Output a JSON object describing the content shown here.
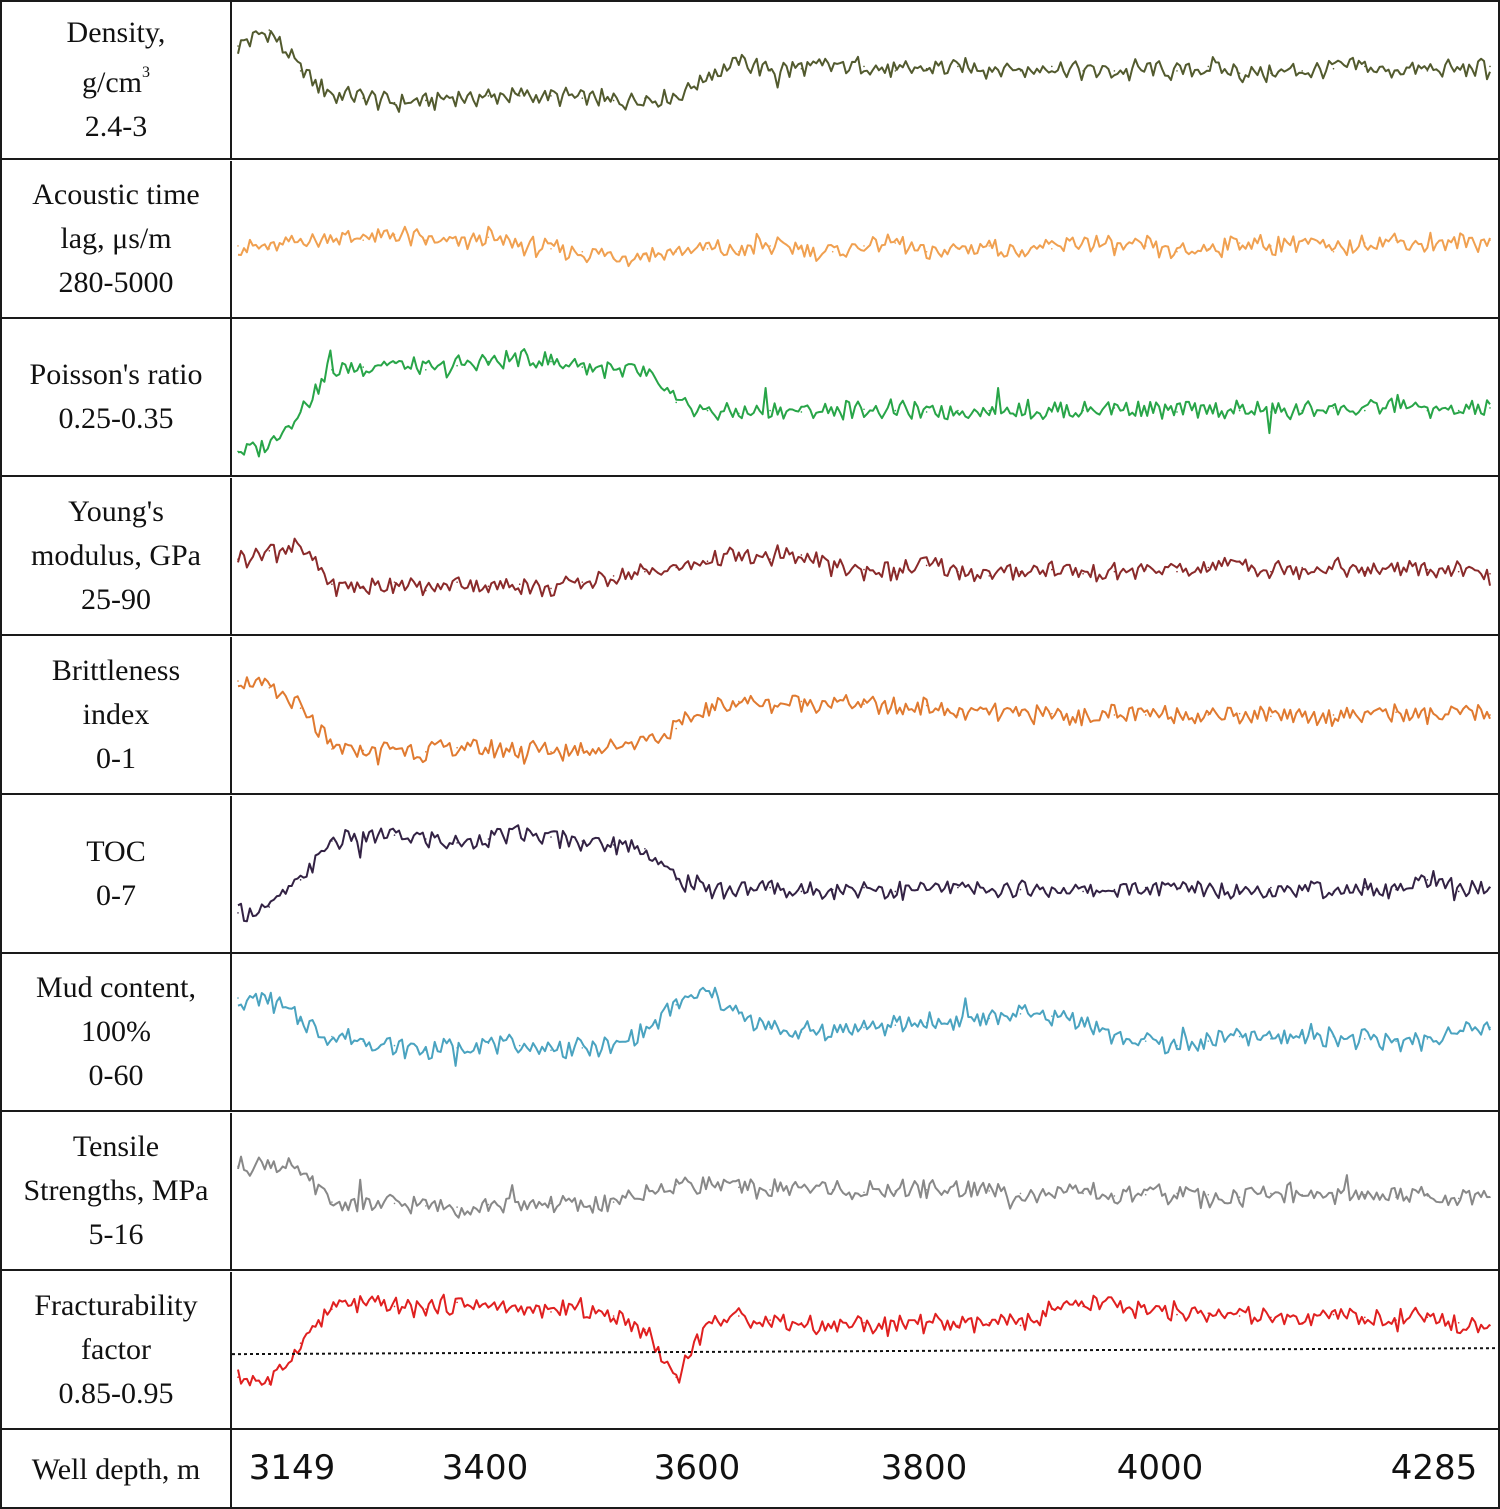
{
  "chart_data": {
    "type": "line",
    "title": "",
    "xlabel": "Well depth, m",
    "x_ticks": [
      "3149",
      "3400",
      "3600",
      "3800",
      "4000",
      "4285"
    ],
    "x_range": [
      3149,
      4285
    ],
    "threshold_series": "Fracturability factor",
    "series": [
      {
        "name": "Density",
        "label_lines": [
          "Density,",
          "g/cm",
          "2.4-3"
        ],
        "unit_sup": "3",
        "range": [
          2.4,
          3
        ],
        "color": "#525a2e",
        "values": [
          2.85,
          2.92,
          2.74,
          2.64,
          2.62,
          2.6,
          2.61,
          2.62,
          2.63,
          2.63,
          2.63,
          2.62,
          2.61,
          2.62,
          2.63,
          2.72,
          2.78,
          2.74,
          2.75,
          2.76,
          2.76,
          2.74,
          2.75,
          2.76,
          2.75,
          2.74,
          2.76,
          2.74,
          2.74,
          2.75,
          2.74,
          2.76,
          2.73,
          2.73,
          2.74,
          2.75,
          2.76,
          2.74,
          2.74,
          2.75,
          2.76
        ]
      },
      {
        "name": "Acoustic time lag",
        "label_lines": [
          "Acoustic time",
          "lag, μs/m",
          "280-5000"
        ],
        "range": [
          280,
          5000
        ],
        "color": "#f0a050",
        "values": [
          2400,
          2300,
          2600,
          2700,
          2600,
          2800,
          2600,
          2500,
          2700,
          2400,
          2300,
          2200,
          2000,
          2100,
          2200,
          2300,
          2200,
          2400,
          2300,
          2200,
          2400,
          2500,
          2200,
          2300,
          2400,
          2200,
          2300,
          2600,
          2300,
          2400,
          2200,
          2300,
          2500,
          2400,
          2600,
          2200,
          2500,
          2600,
          2400,
          2500,
          2600
        ]
      },
      {
        "name": "Poisson's ratio",
        "label_lines": [
          "Poisson's ratio",
          "0.25-0.35"
        ],
        "range": [
          0.25,
          0.35
        ],
        "color": "#28a548",
        "values": [
          0.26,
          0.265,
          0.29,
          0.32,
          0.322,
          0.325,
          0.32,
          0.323,
          0.326,
          0.328,
          0.326,
          0.322,
          0.32,
          0.318,
          0.296,
          0.29,
          0.288,
          0.29,
          0.289,
          0.29,
          0.291,
          0.29,
          0.289,
          0.29,
          0.29,
          0.291,
          0.289,
          0.29,
          0.292,
          0.29,
          0.289,
          0.291,
          0.29,
          0.289,
          0.29,
          0.292,
          0.29,
          0.296,
          0.29,
          0.29,
          0.292
        ]
      },
      {
        "name": "Young's modulus",
        "label_lines": [
          "Young's",
          "modulus, GPa",
          "25-90"
        ],
        "range": [
          25,
          90
        ],
        "color": "#8a2a2a",
        "values": [
          56,
          60,
          62,
          44,
          42,
          45,
          41,
          45,
          43,
          44,
          42,
          45,
          48,
          50,
          52,
          55,
          58,
          56,
          58,
          52,
          51,
          50,
          53,
          50,
          48,
          50,
          51,
          49,
          50,
          51,
          50,
          52,
          55,
          50,
          52,
          53,
          50,
          52,
          51,
          50,
          49
        ]
      },
      {
        "name": "Brittleness index",
        "label_lines": [
          "Brittleness",
          "index",
          "0-1"
        ],
        "range": [
          0,
          1
        ],
        "color": "#e07a30",
        "values": [
          0.75,
          0.7,
          0.55,
          0.25,
          0.24,
          0.25,
          0.23,
          0.26,
          0.24,
          0.25,
          0.23,
          0.24,
          0.28,
          0.32,
          0.4,
          0.55,
          0.6,
          0.58,
          0.6,
          0.6,
          0.58,
          0.56,
          0.57,
          0.5,
          0.52,
          0.5,
          0.51,
          0.49,
          0.5,
          0.5,
          0.52,
          0.5,
          0.51,
          0.49,
          0.5,
          0.5,
          0.51,
          0.52,
          0.48,
          0.52,
          0.5
        ]
      },
      {
        "name": "TOC",
        "label_lines": [
          "TOC",
          "0-7"
        ],
        "range": [
          0,
          7
        ],
        "color": "#332244",
        "values": [
          1.5,
          1.8,
          3.2,
          5.2,
          5.4,
          5.5,
          5.3,
          5.1,
          5.3,
          5.6,
          5.4,
          5.2,
          5.0,
          4.8,
          3.2,
          2.8,
          2.7,
          2.8,
          2.6,
          2.7,
          2.8,
          2.6,
          2.7,
          2.8,
          2.6,
          2.7,
          2.8,
          2.6,
          2.7,
          2.8,
          2.7,
          2.9,
          2.6,
          2.8,
          2.7,
          2.6,
          2.8,
          2.7,
          3.2,
          2.6,
          2.8
        ]
      },
      {
        "name": "Mud content",
        "label_lines": [
          "Mud content,",
          "100%",
          "0-60"
        ],
        "range": [
          0,
          60
        ],
        "color": "#4aa3c0",
        "values": [
          45,
          44,
          35,
          28,
          26,
          24,
          22,
          23,
          25,
          24,
          22,
          23,
          24,
          30,
          42,
          48,
          38,
          32,
          30,
          31,
          32,
          33,
          34,
          35,
          36,
          38,
          37,
          35,
          28,
          26,
          24,
          26,
          28,
          27,
          29,
          28,
          27,
          26,
          27,
          30,
          32
        ]
      },
      {
        "name": "Tensile Strengths",
        "label_lines": [
          "Tensile",
          "Strengths,  MPa",
          "5-16"
        ],
        "range": [
          5,
          16
        ],
        "color": "#888888",
        "values": [
          12.5,
          12.8,
          12.0,
          9.6,
          9.4,
          9.5,
          9.3,
          9.2,
          9.4,
          9.3,
          9.5,
          9.4,
          9.6,
          10.2,
          11.0,
          11.2,
          10.8,
          10.6,
          10.8,
          10.6,
          10.4,
          10.5,
          10.6,
          10.7,
          10.5,
          10.3,
          10.2,
          10.3,
          10.1,
          10.2,
          10.3,
          10.2,
          10.0,
          10.3,
          10.2,
          10.1,
          10.2,
          10.0,
          10.1,
          9.9,
          10.0
        ]
      },
      {
        "name": "Fracturability factor",
        "label_lines": [
          "Fracturability",
          "factor",
          "0.85-0.95"
        ],
        "range": [
          0.85,
          0.95
        ],
        "threshold": 0.897,
        "color": "#e02020",
        "values": [
          0.88,
          0.875,
          0.905,
          0.93,
          0.935,
          0.932,
          0.93,
          0.935,
          0.932,
          0.93,
          0.928,
          0.93,
          0.925,
          0.915,
          0.88,
          0.92,
          0.925,
          0.922,
          0.92,
          0.918,
          0.92,
          0.917,
          0.92,
          0.918,
          0.92,
          0.918,
          0.93,
          0.932,
          0.935,
          0.928,
          0.926,
          0.927,
          0.925,
          0.924,
          0.92,
          0.926,
          0.924,
          0.922,
          0.924,
          0.92,
          0.918
        ]
      }
    ]
  }
}
